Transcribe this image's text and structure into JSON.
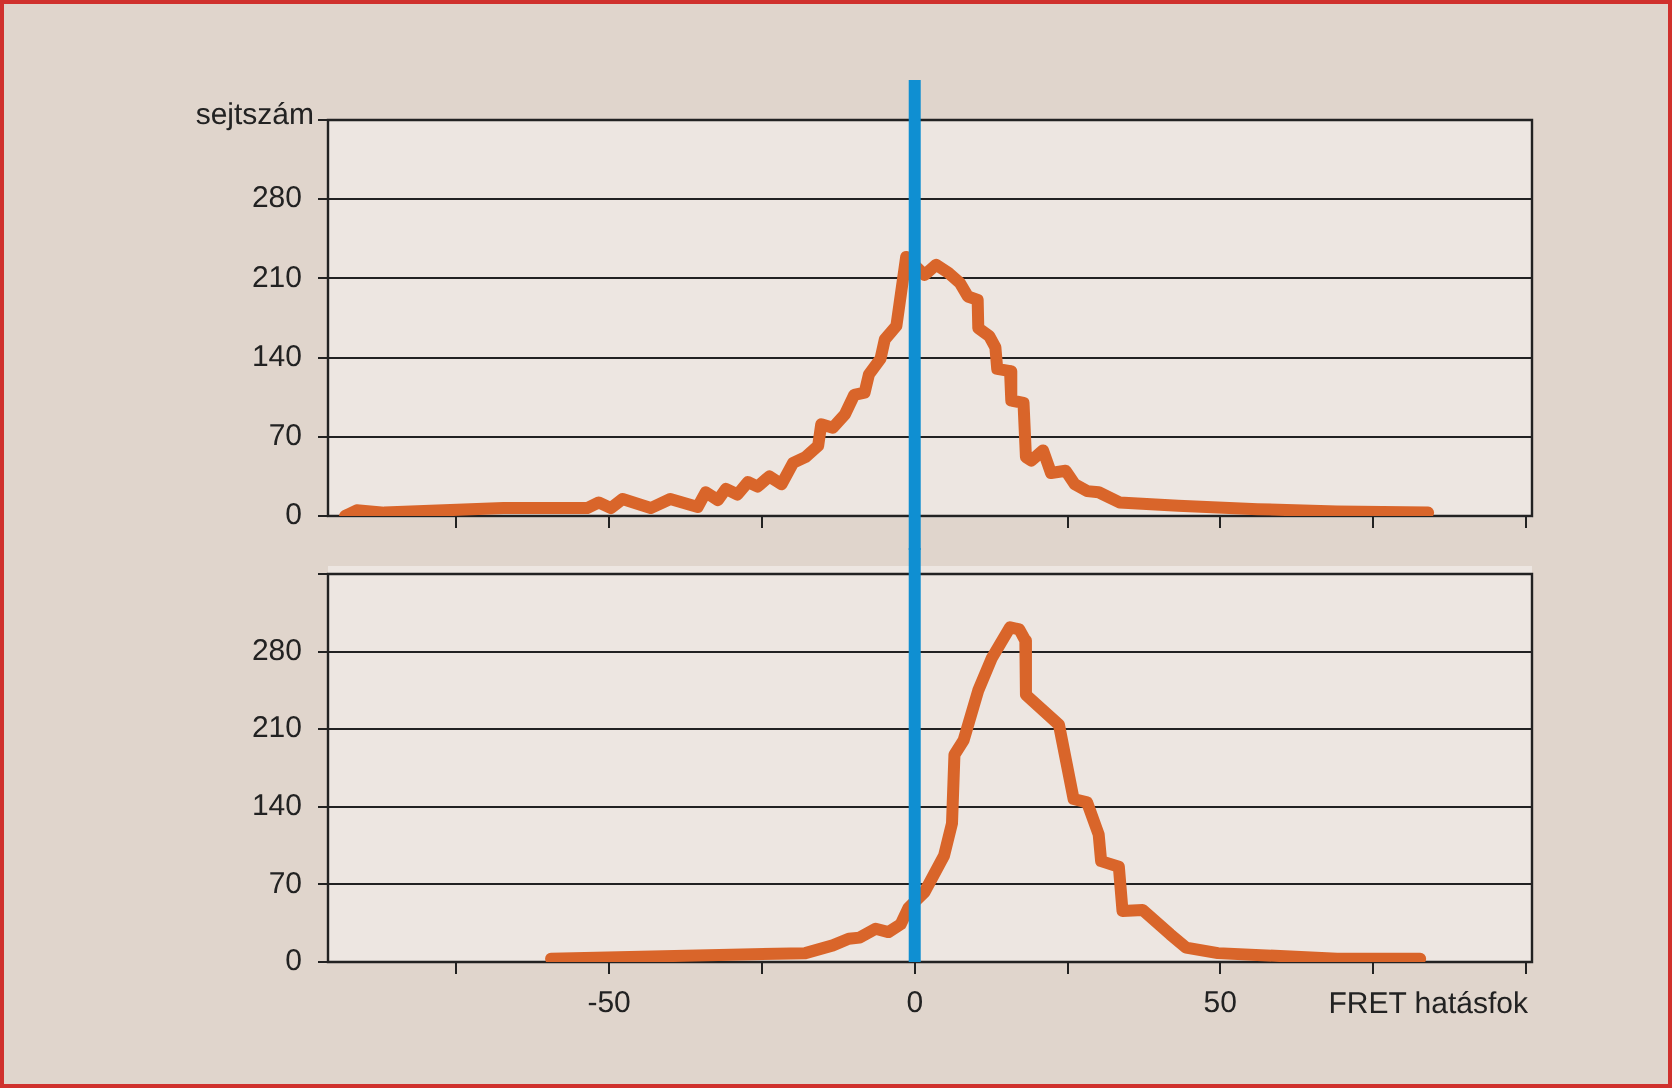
{
  "chart_data": [
    {
      "type": "line",
      "ylabel": "sejtszám",
      "xlim": [
        -96,
        101
      ],
      "xticks": [
        {
          "value": -75,
          "label": null
        },
        {
          "value": -50,
          "label": null
        },
        {
          "value": -25,
          "label": null
        },
        {
          "value": 0,
          "label": null
        },
        {
          "value": 25,
          "label": null
        },
        {
          "value": 50,
          "label": null
        },
        {
          "value": 75,
          "label": null
        },
        {
          "value": 100,
          "label": null
        }
      ],
      "ylim": [
        0,
        350
      ],
      "yticks": [
        0,
        70,
        140,
        210,
        280,
        {
          "value": 350,
          "label": null
        }
      ],
      "grid": "y",
      "tick_labels": "y",
      "ref_lines": [
        {
          "axis": "x",
          "value": 0,
          "color": "#0f8fd2"
        }
      ],
      "series": [
        {
          "color": "#d9652a",
          "x": [
            -93.2,
            -91.3,
            -86.8,
            -67.3,
            -53.6,
            -51.7,
            -49.7,
            -47.8,
            -43.2,
            -40,
            -35.5,
            -34.2,
            -32.2,
            -30.9,
            -29,
            -27.3,
            -25.7,
            -23.8,
            -21.8,
            -19.9,
            -17.9,
            -15.8,
            -15.3,
            -13.4,
            -11.4,
            -9.9,
            -8.2,
            -7.5,
            -5.6,
            -4.9,
            -3,
            -1.4,
            1.6,
            3.5,
            5.5,
            7.4,
            8.7,
            10.3,
            10.4,
            12.2,
            13.2,
            13.5,
            15.6,
            15.8,
            17.8,
            18.2,
            19.1,
            21,
            22.3,
            24.7,
            26.2,
            28.2,
            30.1,
            33.5,
            43.1,
            56.1,
            69.1,
            84
          ],
          "values": [
            0,
            5,
            3,
            7,
            7,
            12,
            7,
            15,
            7,
            15,
            8,
            21,
            14,
            24,
            19,
            30,
            26,
            35,
            28,
            47,
            52,
            62,
            81,
            78,
            90,
            107,
            109,
            125,
            139,
            156,
            168,
            229,
            213,
            222,
            215,
            206,
            194,
            191,
            166,
            159,
            149,
            130,
            128,
            102,
            100,
            52,
            49,
            58,
            38,
            40,
            28,
            22,
            21,
            12,
            9,
            6,
            4,
            3
          ]
        }
      ]
    },
    {
      "type": "line",
      "xlabel": "FRET hatásfok",
      "xlim": [
        -96,
        101
      ],
      "xticks": [
        {
          "value": -75,
          "label": null
        },
        -50,
        {
          "value": -25,
          "label": null
        },
        0,
        {
          "value": 25,
          "label": null
        },
        50,
        {
          "value": 75,
          "label": null
        },
        {
          "value": 100,
          "label": null
        }
      ],
      "ylim": [
        0,
        350
      ],
      "yticks": [
        0,
        70,
        140,
        210,
        280,
        {
          "value": 350,
          "label": null
        }
      ],
      "grid": "y",
      "ref_lines": [
        {
          "axis": "x",
          "value": 0,
          "color": "#0f8fd2"
        }
      ],
      "series": [
        {
          "color": "#d9652a",
          "x": [
            -59.5,
            -17.9,
            -13.4,
            -10.8,
            -9,
            -6.4,
            -4.3,
            -2.3,
            -1,
            1.6,
            4.8,
            6.1,
            6.5,
            8,
            10.4,
            12.6,
            15.6,
            17.1,
            18.1,
            18.2,
            23.6,
            26,
            28.2,
            30.1,
            30.5,
            33.4,
            34,
            37.3,
            41.8,
            44.4,
            49.6,
            69.1,
            82.7
          ],
          "values": [
            3,
            8,
            15,
            21,
            22,
            30,
            27,
            34,
            49,
            63,
            96,
            125,
            187,
            200,
            245,
            274,
            302,
            300,
            290,
            241,
            214,
            147,
            144,
            115,
            91,
            86,
            46,
            47,
            25,
            13,
            8,
            3,
            3
          ]
        }
      ]
    }
  ]
}
